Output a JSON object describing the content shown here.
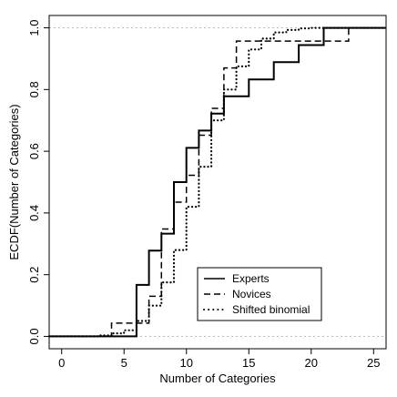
{
  "chart_data": {
    "type": "line",
    "title": "",
    "xlabel": "Number of Categories",
    "ylabel": "ECDF(Number of Categories)",
    "xlim": [
      -1,
      26
    ],
    "ylim": [
      -0.04,
      1.04
    ],
    "xticks": [
      0,
      5,
      10,
      15,
      20,
      25
    ],
    "xtick_labels": [
      "0",
      "5",
      "10",
      "15",
      "20",
      "25"
    ],
    "yticks": [
      0.0,
      0.2,
      0.4,
      0.6,
      0.8,
      1.0
    ],
    "ytick_labels": [
      "0.0",
      "0.2",
      "0.4",
      "0.6",
      "0.8",
      "1.0"
    ],
    "reference_lines": [
      0,
      1
    ],
    "grid": false,
    "legend_position": "bottom-center",
    "series": [
      {
        "name": "Experts",
        "linestyle": "solid",
        "x": [
          -1,
          6,
          7,
          8,
          9,
          10,
          11,
          12,
          13,
          15,
          17,
          19,
          21,
          26
        ],
        "y": [
          0,
          0.167,
          0.278,
          0.333,
          0.5,
          0.611,
          0.667,
          0.722,
          0.778,
          0.833,
          0.889,
          0.944,
          1.0,
          1.0
        ]
      },
      {
        "name": "Novices",
        "linestyle": "dashed",
        "x": [
          -1,
          4,
          6,
          7,
          8,
          9,
          10,
          11,
          12,
          13,
          14,
          21,
          23,
          26
        ],
        "y": [
          0,
          0.043,
          0.043,
          0.13,
          0.348,
          0.435,
          0.522,
          0.652,
          0.739,
          0.87,
          0.957,
          0.957,
          1.0,
          1.0
        ]
      },
      {
        "name": "Shifted binomial",
        "linestyle": "dotted",
        "x": [
          -1,
          3,
          4,
          5,
          6,
          7,
          8,
          9,
          10,
          11,
          12,
          13,
          14,
          15,
          16,
          17,
          18,
          19,
          20,
          26
        ],
        "y": [
          0,
          0.003,
          0.01,
          0.02,
          0.05,
          0.1,
          0.175,
          0.28,
          0.42,
          0.55,
          0.7,
          0.8,
          0.875,
          0.93,
          0.965,
          0.985,
          0.993,
          0.998,
          1.0,
          1.0
        ]
      }
    ]
  }
}
